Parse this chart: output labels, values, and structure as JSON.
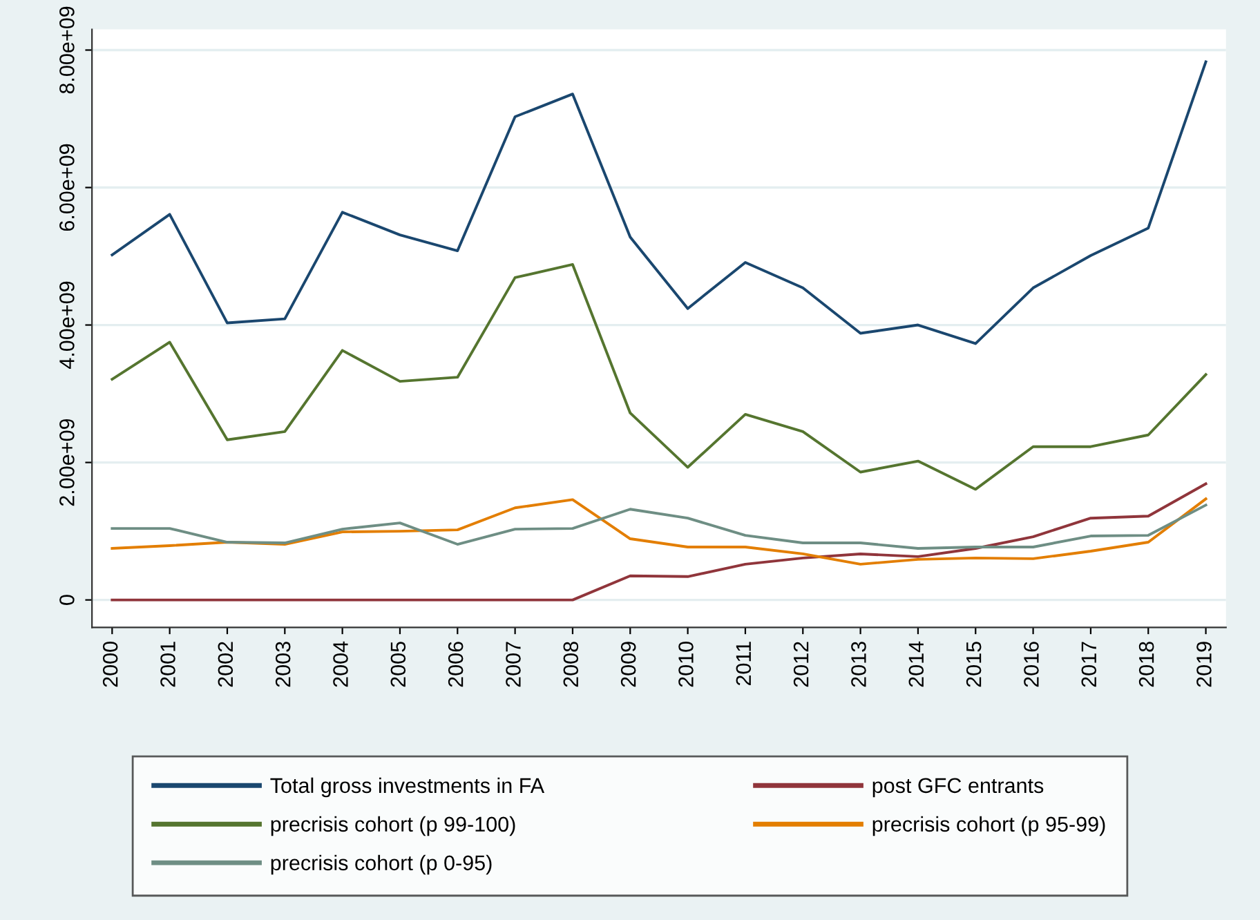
{
  "chart_data": {
    "type": "line",
    "categories": [
      "2000",
      "2001",
      "2002",
      "2003",
      "2004",
      "2005",
      "2006",
      "2007",
      "2008",
      "2009",
      "2010",
      "2011",
      "2012",
      "2013",
      "2014",
      "2015",
      "2016",
      "2017",
      "2018",
      "2019"
    ],
    "series": [
      {
        "name": "Total gross investments in FA",
        "color": "#1a476f",
        "values": [
          5020000000.0,
          5610000000.0,
          4030000000.0,
          4090000000.0,
          5640000000.0,
          5310000000.0,
          5080000000.0,
          7030000000.0,
          7360000000.0,
          5280000000.0,
          4240000000.0,
          4910000000.0,
          4540000000.0,
          3880000000.0,
          4000000000.0,
          3730000000.0,
          4540000000.0,
          5010000000.0,
          5410000000.0,
          7830000000.0
        ]
      },
      {
        "name": "post GFC entrants",
        "color": "#90353b",
        "values": [
          0,
          0,
          0,
          0,
          0,
          0,
          0,
          0,
          0,
          350000000.0,
          340000000.0,
          520000000.0,
          610000000.0,
          670000000.0,
          630000000.0,
          750000000.0,
          920000000.0,
          1190000000.0,
          1220000000.0,
          1690000000.0
        ]
      },
      {
        "name": "precrisis cohort (p 99-100)",
        "color": "#55752f",
        "values": [
          3210000000.0,
          3750000000.0,
          2330000000.0,
          2450000000.0,
          3630000000.0,
          3180000000.0,
          3240000000.0,
          4690000000.0,
          4880000000.0,
          2720000000.0,
          1930000000.0,
          2700000000.0,
          2450000000.0,
          1860000000.0,
          2020000000.0,
          1610000000.0,
          2230000000.0,
          2230000000.0,
          2400000000.0,
          3280000000.0
        ]
      },
      {
        "name": "precrisis cohort (p 95-99)",
        "color": "#e37e00",
        "values": [
          750000000.0,
          790000000.0,
          840000000.0,
          810000000.0,
          990000000.0,
          1000000000.0,
          1020000000.0,
          1340000000.0,
          1460000000.0,
          890000000.0,
          770000000.0,
          770000000.0,
          670000000.0,
          520000000.0,
          590000000.0,
          610000000.0,
          600000000.0,
          710000000.0,
          840000000.0,
          1470000000.0
        ]
      },
      {
        "name": "precrisis cohort (p 0-95)",
        "color": "#6e8e84",
        "values": [
          1040000000.0,
          1040000000.0,
          840000000.0,
          830000000.0,
          1030000000.0,
          1120000000.0,
          810000000.0,
          1030000000.0,
          1040000000.0,
          1320000000.0,
          1190000000.0,
          940000000.0,
          830000000.0,
          830000000.0,
          750000000.0,
          770000000.0,
          770000000.0,
          930000000.0,
          940000000.0,
          1380000000.0
        ]
      }
    ],
    "ylim": [
      -400000000.0,
      8300000000.0
    ],
    "yticks": [
      0,
      {
        "value": 2000000000.0,
        "label": "2.00e+09"
      },
      {
        "value": 4000000000.0,
        "label": "4.00e+09"
      },
      {
        "value": 6000000000.0,
        "label": "6.00e+09"
      },
      {
        "value": 8000000000.0,
        "label": "8.00e+09"
      }
    ],
    "grid": "y",
    "legend": "bottom",
    "marker": "none",
    "line_style": "solid"
  }
}
